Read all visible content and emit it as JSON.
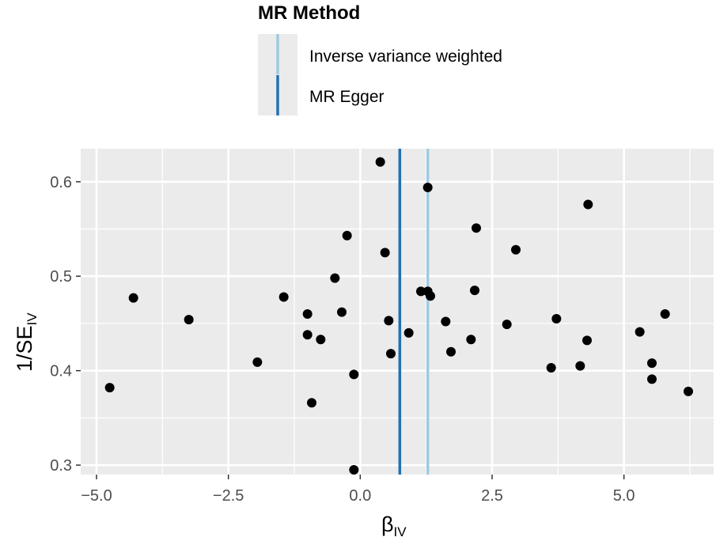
{
  "chart_data": {
    "type": "scatter",
    "xlabel": "β",
    "xlabel_sub": "IV",
    "ylabel": "1/SE",
    "ylabel_sub": "IV",
    "xlim": [
      -5.3,
      6.7
    ],
    "ylim": [
      0.29,
      0.635
    ],
    "x_ticks": [
      -5.0,
      -2.5,
      0.0,
      2.5,
      5.0
    ],
    "x_tick_labels": [
      "−5.0",
      "−2.5",
      "0.0",
      "2.5",
      "5.0"
    ],
    "y_ticks": [
      0.3,
      0.4,
      0.5,
      0.6
    ],
    "y_tick_labels": [
      "0.3",
      "0.4",
      "0.5",
      "0.6"
    ],
    "grid": true,
    "legend": {
      "title": "MR Method",
      "position": "top",
      "entries": [
        {
          "label": "Inverse variance weighted",
          "color": "#9ecae1"
        },
        {
          "label": "MR Egger",
          "color": "#2171b5"
        }
      ]
    },
    "vlines": [
      {
        "method": "Inverse variance weighted",
        "x": 1.28,
        "color": "#9ecae1"
      },
      {
        "method": "MR Egger",
        "x": 0.75,
        "color": "#2171b5"
      }
    ],
    "points": [
      {
        "x": -4.75,
        "y": 0.382
      },
      {
        "x": -4.3,
        "y": 0.477
      },
      {
        "x": -3.25,
        "y": 0.454
      },
      {
        "x": -1.95,
        "y": 0.409
      },
      {
        "x": -1.45,
        "y": 0.478
      },
      {
        "x": -1.0,
        "y": 0.46
      },
      {
        "x": -1.0,
        "y": 0.438
      },
      {
        "x": -0.92,
        "y": 0.366
      },
      {
        "x": -0.75,
        "y": 0.433
      },
      {
        "x": -0.48,
        "y": 0.498
      },
      {
        "x": -0.35,
        "y": 0.462
      },
      {
        "x": -0.25,
        "y": 0.543
      },
      {
        "x": -0.12,
        "y": 0.396
      },
      {
        "x": -0.12,
        "y": 0.295
      },
      {
        "x": 0.38,
        "y": 0.621
      },
      {
        "x": 0.47,
        "y": 0.525
      },
      {
        "x": 0.54,
        "y": 0.453
      },
      {
        "x": 0.58,
        "y": 0.418
      },
      {
        "x": 0.92,
        "y": 0.44
      },
      {
        "x": 1.15,
        "y": 0.484
      },
      {
        "x": 1.28,
        "y": 0.484
      },
      {
        "x": 1.28,
        "y": 0.594
      },
      {
        "x": 1.33,
        "y": 0.479
      },
      {
        "x": 1.62,
        "y": 0.452
      },
      {
        "x": 1.72,
        "y": 0.42
      },
      {
        "x": 2.1,
        "y": 0.433
      },
      {
        "x": 2.17,
        "y": 0.485
      },
      {
        "x": 2.2,
        "y": 0.551
      },
      {
        "x": 2.78,
        "y": 0.449
      },
      {
        "x": 2.95,
        "y": 0.528
      },
      {
        "x": 3.62,
        "y": 0.403
      },
      {
        "x": 3.72,
        "y": 0.455
      },
      {
        "x": 4.17,
        "y": 0.405
      },
      {
        "x": 4.3,
        "y": 0.432
      },
      {
        "x": 4.32,
        "y": 0.576
      },
      {
        "x": 5.3,
        "y": 0.441
      },
      {
        "x": 5.53,
        "y": 0.391
      },
      {
        "x": 5.53,
        "y": 0.408
      },
      {
        "x": 5.78,
        "y": 0.46
      },
      {
        "x": 6.22,
        "y": 0.378
      }
    ]
  }
}
